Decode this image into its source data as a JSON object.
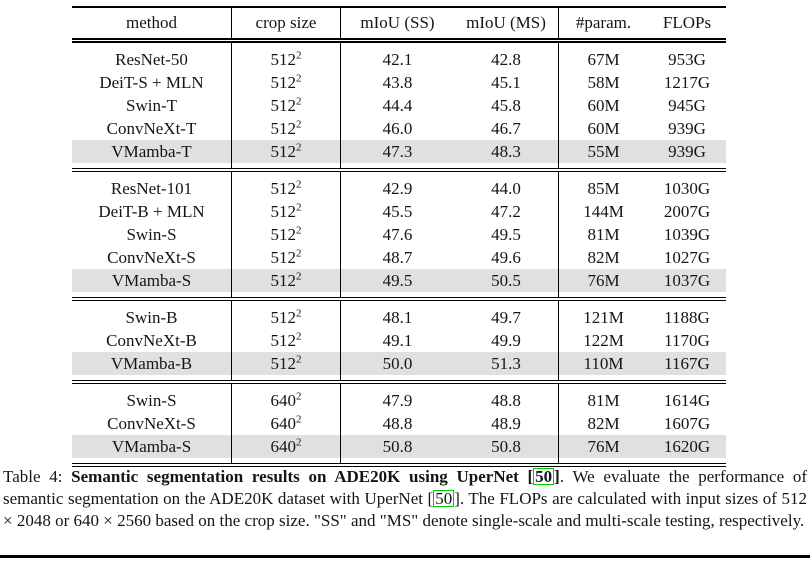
{
  "table": {
    "columns": [
      "method",
      "crop size",
      "mIoU (SS)",
      "mIoU (MS)",
      "#param.",
      "FLOPs"
    ],
    "groups": [
      {
        "rows": [
          {
            "method": "ResNet-50",
            "crop": "512",
            "crop_sup": "2",
            "ss": "42.1",
            "ms": "42.8",
            "params": "67M",
            "flops": "953G",
            "highlight": false
          },
          {
            "method": "DeiT-S + MLN",
            "crop": "512",
            "crop_sup": "2",
            "ss": "43.8",
            "ms": "45.1",
            "params": "58M",
            "flops": "1217G",
            "highlight": false
          },
          {
            "method": "Swin-T",
            "crop": "512",
            "crop_sup": "2",
            "ss": "44.4",
            "ms": "45.8",
            "params": "60M",
            "flops": "945G",
            "highlight": false
          },
          {
            "method": "ConvNeXt-T",
            "crop": "512",
            "crop_sup": "2",
            "ss": "46.0",
            "ms": "46.7",
            "params": "60M",
            "flops": "939G",
            "highlight": false
          },
          {
            "method": "VMamba-T",
            "crop": "512",
            "crop_sup": "2",
            "ss": "47.3",
            "ms": "48.3",
            "params": "55M",
            "flops": "939G",
            "highlight": true
          }
        ]
      },
      {
        "rows": [
          {
            "method": "ResNet-101",
            "crop": "512",
            "crop_sup": "2",
            "ss": "42.9",
            "ms": "44.0",
            "params": "85M",
            "flops": "1030G",
            "highlight": false
          },
          {
            "method": "DeiT-B + MLN",
            "crop": "512",
            "crop_sup": "2",
            "ss": "45.5",
            "ms": "47.2",
            "params": "144M",
            "flops": "2007G",
            "highlight": false
          },
          {
            "method": "Swin-S",
            "crop": "512",
            "crop_sup": "2",
            "ss": "47.6",
            "ms": "49.5",
            "params": "81M",
            "flops": "1039G",
            "highlight": false
          },
          {
            "method": "ConvNeXt-S",
            "crop": "512",
            "crop_sup": "2",
            "ss": "48.7",
            "ms": "49.6",
            "params": "82M",
            "flops": "1027G",
            "highlight": false
          },
          {
            "method": "VMamba-S",
            "crop": "512",
            "crop_sup": "2",
            "ss": "49.5",
            "ms": "50.5",
            "params": "76M",
            "flops": "1037G",
            "highlight": true
          }
        ]
      },
      {
        "rows": [
          {
            "method": "Swin-B",
            "crop": "512",
            "crop_sup": "2",
            "ss": "48.1",
            "ms": "49.7",
            "params": "121M",
            "flops": "1188G",
            "highlight": false
          },
          {
            "method": "ConvNeXt-B",
            "crop": "512",
            "crop_sup": "2",
            "ss": "49.1",
            "ms": "49.9",
            "params": "122M",
            "flops": "1170G",
            "highlight": false
          },
          {
            "method": "VMamba-B",
            "crop": "512",
            "crop_sup": "2",
            "ss": "50.0",
            "ms": "51.3",
            "params": "110M",
            "flops": "1167G",
            "highlight": true
          }
        ]
      },
      {
        "rows": [
          {
            "method": "Swin-S",
            "crop": "640",
            "crop_sup": "2",
            "ss": "47.9",
            "ms": "48.8",
            "params": "81M",
            "flops": "1614G",
            "highlight": false
          },
          {
            "method": "ConvNeXt-S",
            "crop": "640",
            "crop_sup": "2",
            "ss": "48.8",
            "ms": "48.9",
            "params": "82M",
            "flops": "1607G",
            "highlight": false
          },
          {
            "method": "VMamba-S",
            "crop": "640",
            "crop_sup": "2",
            "ss": "50.8",
            "ms": "50.8",
            "params": "76M",
            "flops": "1620G",
            "highlight": true
          }
        ]
      }
    ]
  },
  "caption": {
    "segments": [
      {
        "text": "Table 4: ",
        "bold": false,
        "cite": false
      },
      {
        "text": "Semantic segmentation results on ADE20K using UperNet [",
        "bold": true,
        "cite": false
      },
      {
        "text": "50",
        "bold": true,
        "cite": true
      },
      {
        "text": "]",
        "bold": true,
        "cite": false
      },
      {
        "text": ". We evaluate the performance of semantic segmentation on the ADE20K dataset with UperNet [",
        "bold": false,
        "cite": false
      },
      {
        "text": "50",
        "bold": false,
        "cite": true
      },
      {
        "text": "]. The FLOPs are calculated with input sizes of 512 × 2048 or 640 × 2560 based on the crop size. \"SS\" and \"MS\" denote single-scale and multi-scale testing, respectively.",
        "bold": false,
        "cite": false
      }
    ]
  },
  "colors": {
    "highlight_row": "#e0e0e0",
    "citation_box": "#00cc00",
    "rule": "#000000"
  }
}
